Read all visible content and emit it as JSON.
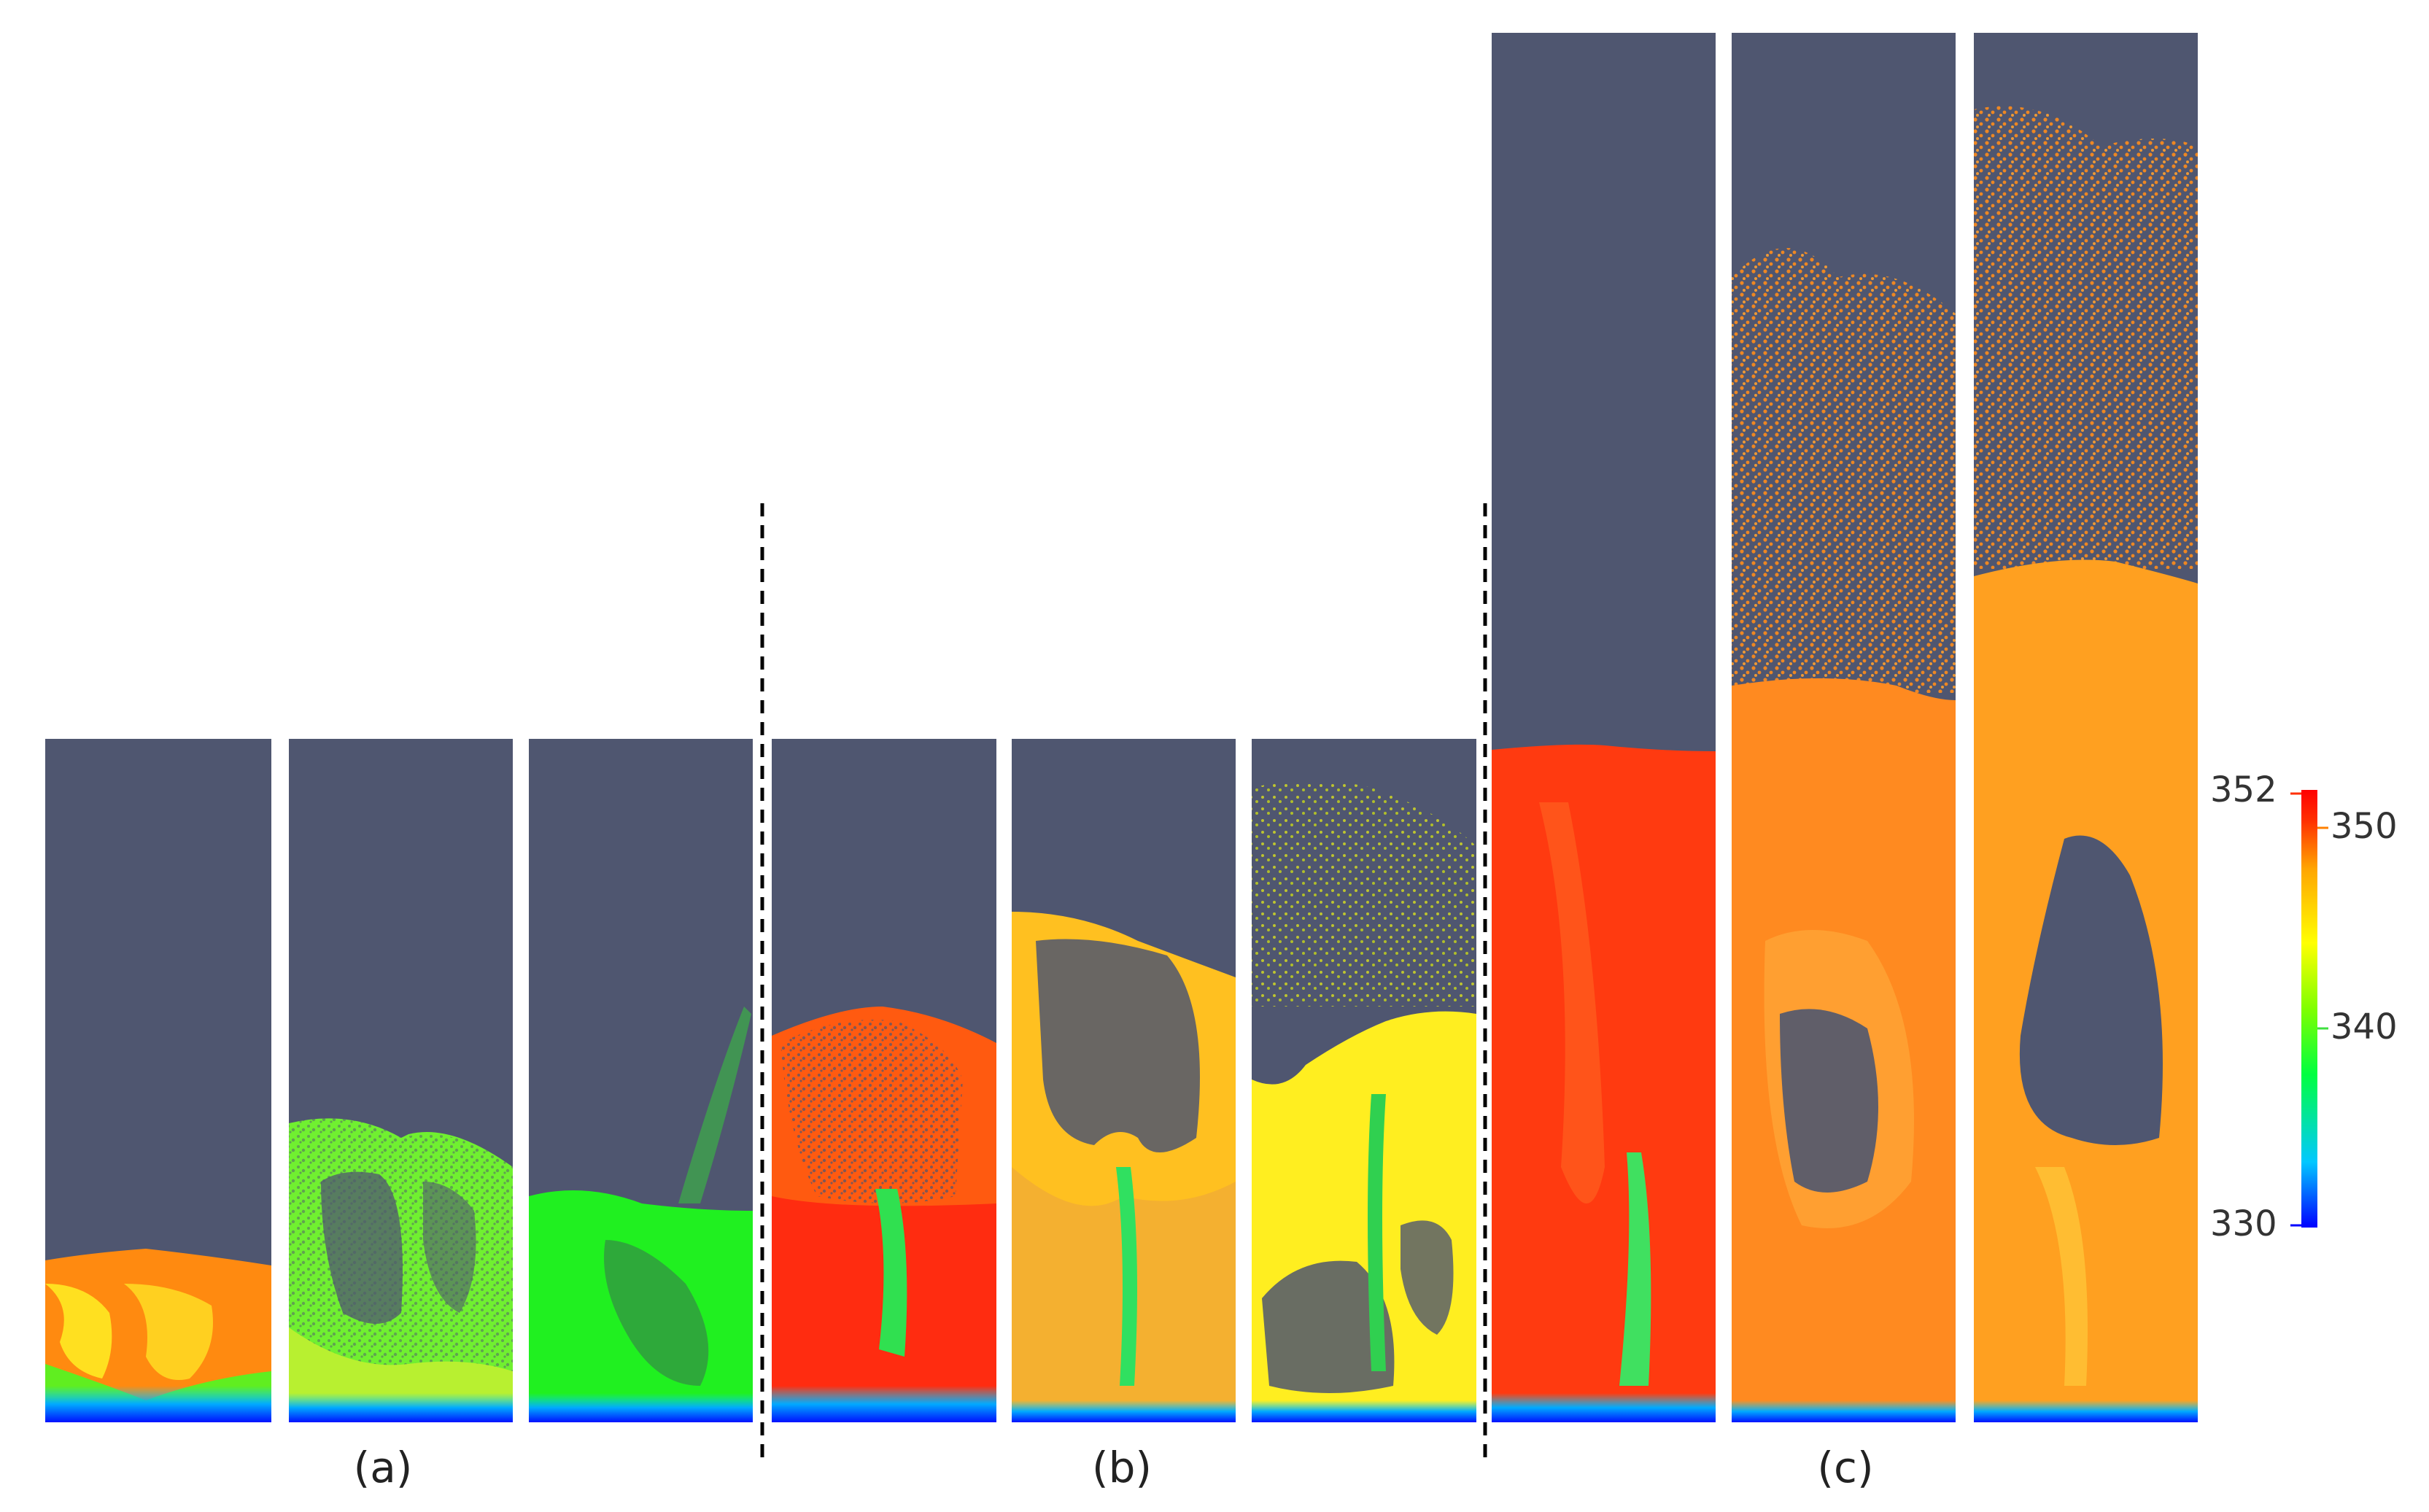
{
  "groups": [
    {
      "label": "(a)"
    },
    {
      "label": "(b)"
    },
    {
      "label": "(c)"
    }
  ],
  "colorbar": {
    "min_label": "330",
    "max_label": "352",
    "tick_labels": [
      "350",
      "340"
    ],
    "colors": [
      "#0000ff",
      "#00c8ff",
      "#00ff40",
      "#80ff00",
      "#ffff00",
      "#ffa500",
      "#ff3000",
      "#ff0000"
    ]
  },
  "colors": {
    "empty_region": "#4f5670",
    "background": "#ffffff",
    "divider": "#000000"
  }
}
